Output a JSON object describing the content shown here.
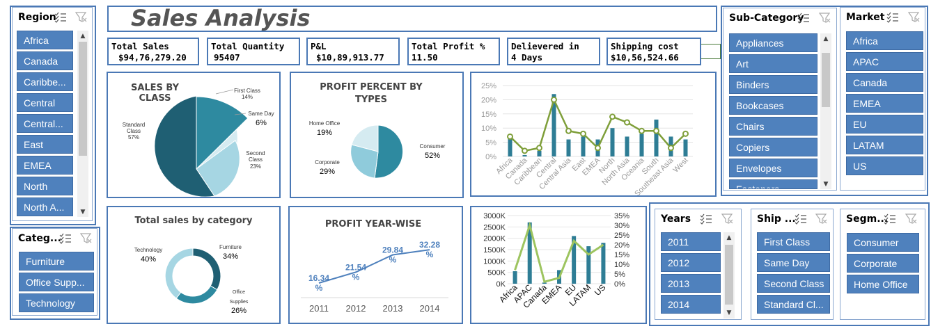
{
  "title": "Sales Analysis",
  "colors": {
    "accent": "#4f81bd",
    "bar": "#2e7d95",
    "line": "#7f9f3a",
    "pie_dark": "#1f5f73",
    "pie_mid": "#2e8aa0",
    "pie_light": "#a6d6e3"
  },
  "kpis": [
    {
      "label": "Total Sales",
      "value": "$94,76,279.20"
    },
    {
      "label": "Total Quantity",
      "value": "95407"
    },
    {
      "label": "P&L",
      "value": "$10,89,913.77"
    },
    {
      "label": "Total Profit %",
      "value": "11.50"
    },
    {
      "label": "Delievered in",
      "value": "4 Days"
    },
    {
      "label": "Shipping cost",
      "value": "$10,56,524.66"
    }
  ],
  "slicers": {
    "region": {
      "title": "Region",
      "items": [
        "Africa",
        "Canada",
        "Caribbe...",
        "Central",
        "Central...",
        "East",
        "EMEA",
        "North",
        "North A..."
      ]
    },
    "category": {
      "title": "Categ...",
      "items": [
        "Furniture",
        "Office Supp...",
        "Technology"
      ]
    },
    "subcategory": {
      "title": "Sub-Category",
      "items": [
        "Appliances",
        "Art",
        "Binders",
        "Bookcases",
        "Chairs",
        "Copiers",
        "Envelopes",
        "Fasteners"
      ]
    },
    "market": {
      "title": "Market",
      "items": [
        "Africa",
        "APAC",
        "Canada",
        "EMEA",
        "EU",
        "LATAM",
        "US"
      ]
    },
    "years": {
      "title": "Years",
      "items": [
        "2011",
        "2012",
        "2013",
        "2014"
      ]
    },
    "ship": {
      "title": "Ship ...",
      "items": [
        "First Class",
        "Same Day",
        "Second Class",
        "Standard Cl..."
      ]
    },
    "segment": {
      "title": "Segm...",
      "items": [
        "Consumer",
        "Corporate",
        "Home Office"
      ]
    }
  },
  "chart_data": [
    {
      "type": "pie",
      "title": "SALES BY CLASS",
      "slices": [
        {
          "label": "First Class",
          "value": 14,
          "display": "14%"
        },
        {
          "label": "Same Day",
          "value": 6,
          "display": "6%"
        },
        {
          "label": "Second Class",
          "value": 23,
          "display": "23%"
        },
        {
          "label": "Standard Class",
          "value": 57,
          "display": "57%"
        }
      ]
    },
    {
      "type": "pie",
      "title": "PROFIT PERCENT BY TYPES",
      "slices": [
        {
          "label": "Consumer",
          "value": 52,
          "display": "52%"
        },
        {
          "label": "Corporate",
          "value": 29,
          "display": "29%"
        },
        {
          "label": "Home Office",
          "value": 19,
          "display": "19%"
        }
      ]
    },
    {
      "type": "bar",
      "title": "",
      "categories": [
        "Africa",
        "Canada",
        "Caribbean",
        "Central",
        "Central Asia",
        "East",
        "EMEA",
        "North",
        "North Asia",
        "Oceania",
        "South",
        "Southeast Asia",
        "West"
      ],
      "series": [
        {
          "kind": "bar",
          "values": [
            7,
            0.5,
            2,
            22,
            6,
            7,
            6,
            10,
            7,
            8,
            13,
            7,
            6
          ]
        },
        {
          "kind": "line",
          "values": [
            7,
            2,
            3,
            20,
            9,
            8,
            3,
            14,
            12,
            9,
            9,
            3,
            8
          ]
        }
      ],
      "yticks": [
        "0%",
        "5%",
        "10%",
        "15%",
        "20%",
        "25%"
      ],
      "ylim": [
        0,
        25
      ]
    },
    {
      "type": "pie",
      "title": "Total sales by category",
      "slices": [
        {
          "label": "Furniture",
          "value": 34,
          "display": "34%"
        },
        {
          "label": "Office Supplies",
          "value": 26,
          "display": "26%"
        },
        {
          "label": "Technology",
          "value": 40,
          "display": "40%"
        }
      ]
    },
    {
      "type": "line",
      "title": "PROFIT YEAR-WISE",
      "categories": [
        "2011",
        "2012",
        "2013",
        "2014"
      ],
      "values": [
        16.34,
        21.54,
        29.84,
        32.28
      ],
      "labels": [
        "16.34 %",
        "21.54 %",
        "29.84 %",
        "32.28 %"
      ]
    },
    {
      "type": "bar",
      "title": "",
      "categories": [
        "Africa",
        "APAC",
        "Canada",
        "EMEA",
        "EU",
        "LATAM",
        "US"
      ],
      "series": [
        {
          "kind": "bar",
          "axis": "left",
          "values": [
            550,
            2700,
            50,
            600,
            2100,
            1650,
            1800
          ]
        },
        {
          "kind": "line",
          "axis": "right",
          "values": [
            7,
            30,
            1,
            3,
            22,
            15,
            20
          ]
        }
      ],
      "y_left_ticks": [
        "0K",
        "500K",
        "1000K",
        "1500K",
        "2000K",
        "2500K",
        "3000K"
      ],
      "y_right_ticks": [
        "0%",
        "5%",
        "10%",
        "15%",
        "20%",
        "25%",
        "30%",
        "35%"
      ],
      "ylim_left": [
        0,
        3000
      ],
      "ylim_right": [
        0,
        35
      ]
    }
  ]
}
